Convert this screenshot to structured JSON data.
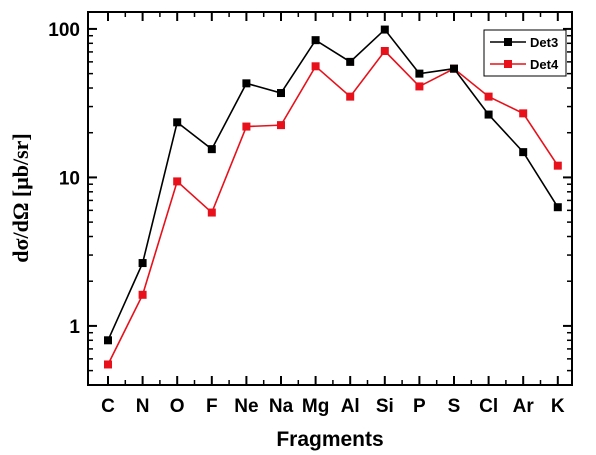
{
  "chart_data": {
    "type": "line",
    "title": "",
    "xlabel": "Fragments",
    "ylabel": "dσ/dΩ [μb/sr]",
    "yscale": "log",
    "ylim": [
      0.4,
      130
    ],
    "yticks": [
      1,
      10,
      100
    ],
    "ytick_labels": [
      "1",
      "10",
      "100"
    ],
    "grid": false,
    "legend_position": "top-right",
    "categories": [
      "C",
      "N",
      "O",
      "F",
      "Ne",
      "Na",
      "Mg",
      "Al",
      "Si",
      "P",
      "S",
      "Cl",
      "Ar",
      "K"
    ],
    "series": [
      {
        "name": "Det3",
        "color": "#000000",
        "marker": "square",
        "values": [
          0.8,
          2.65,
          23.5,
          15.5,
          43,
          37,
          84,
          60,
          99,
          50,
          54,
          26.5,
          14.8,
          6.3
        ]
      },
      {
        "name": "Det4",
        "color": "#e8101a",
        "marker": "square",
        "values": [
          0.55,
          1.62,
          9.4,
          5.8,
          22,
          22.5,
          56,
          35,
          71,
          41,
          54,
          35,
          27,
          12
        ]
      }
    ]
  }
}
